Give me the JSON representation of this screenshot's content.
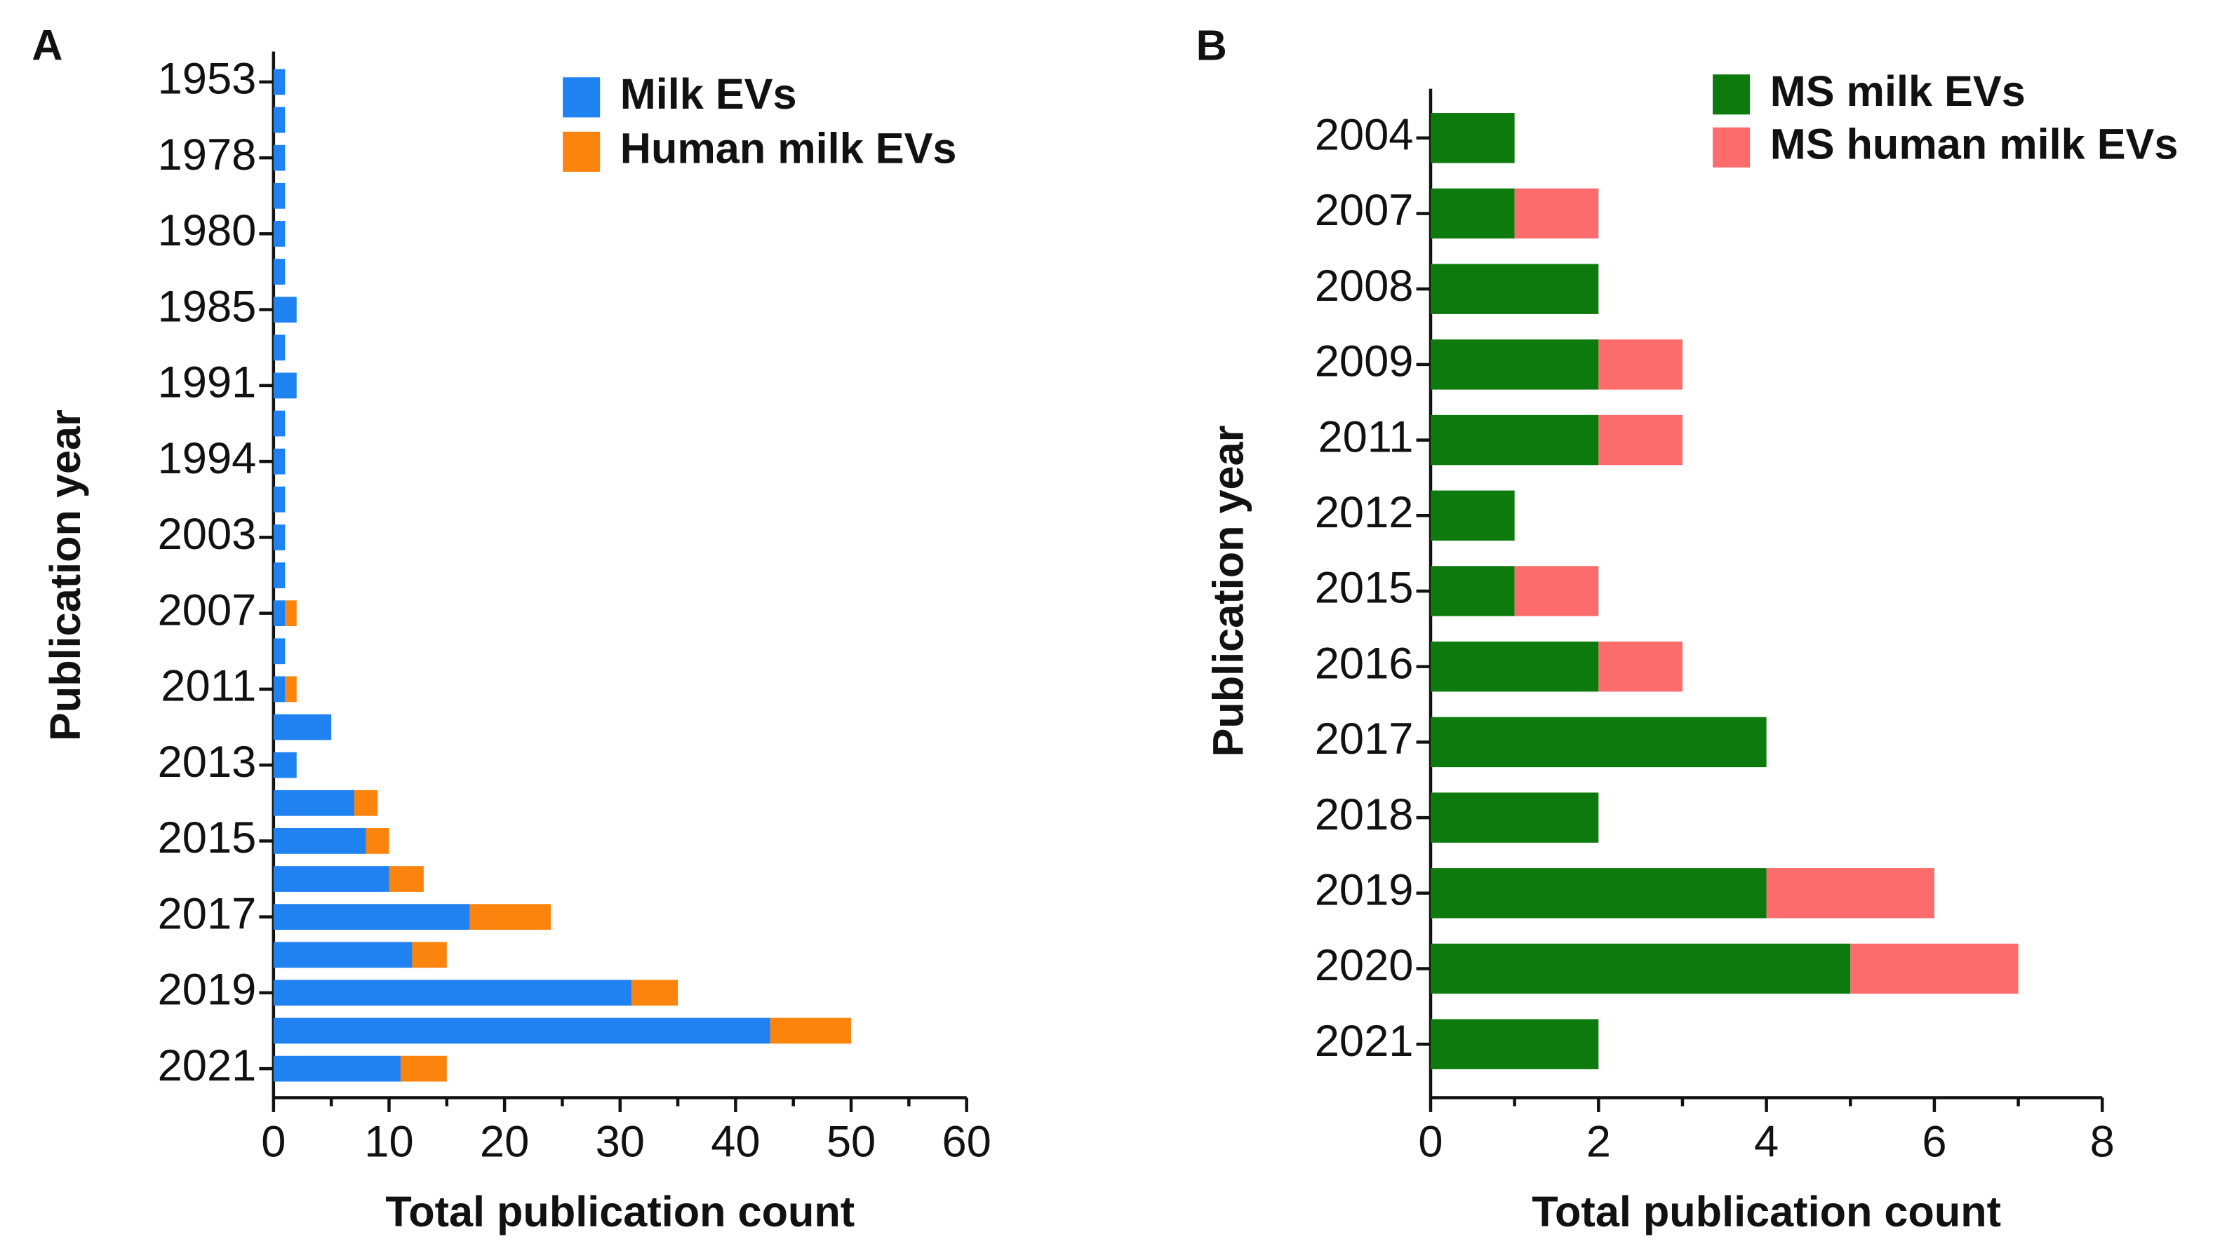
{
  "chart_data": [
    {
      "type": "bar",
      "orientation": "horizontal",
      "stacked": true,
      "panel_label": "A",
      "xlabel": "Total publication count",
      "ylabel": "Publication year",
      "categories": [
        "1953",
        null,
        "1978",
        null,
        "1980",
        null,
        "1985",
        null,
        "1991",
        null,
        "1994",
        null,
        "2003",
        null,
        "2007",
        null,
        "2011",
        null,
        "2013",
        null,
        "2015",
        null,
        "2017",
        null,
        "2019",
        null,
        "2021"
      ],
      "series": [
        {
          "name": "Milk EVs",
          "color": "#1f82f0",
          "values": [
            1,
            1,
            1,
            1,
            1,
            1,
            2,
            1,
            2,
            1,
            1,
            1,
            1,
            1,
            1,
            1,
            1,
            5,
            2,
            7,
            8,
            10,
            17,
            12,
            31,
            43,
            11
          ]
        },
        {
          "name": "Human milk EVs",
          "color": "#fb840f",
          "values": [
            0,
            0,
            0,
            0,
            0,
            0,
            0,
            0,
            0,
            0,
            0,
            0,
            0,
            0,
            1,
            0,
            1,
            0,
            0,
            2,
            2,
            3,
            7,
            3,
            4,
            7,
            4
          ]
        }
      ],
      "xlim": [
        0,
        60
      ],
      "xticks": [
        0,
        10,
        20,
        30,
        40,
        50,
        60
      ],
      "xminorticks": [
        5,
        15,
        25,
        35,
        45,
        55
      ],
      "legend": "top-right"
    },
    {
      "type": "bar",
      "orientation": "horizontal",
      "stacked": true,
      "panel_label": "B",
      "xlabel": "Total publication count",
      "ylabel": "Publication year",
      "categories": [
        "2004",
        "2007",
        "2008",
        "2009",
        "2011",
        "2012",
        "2015",
        "2016",
        "2017",
        "2018",
        "2019",
        "2020",
        "2021"
      ],
      "series": [
        {
          "name": "MS milk EVs",
          "color": "#0d7a0d",
          "values": [
            1,
            1,
            2,
            2,
            2,
            1,
            1,
            2,
            4,
            2,
            4,
            5,
            2
          ]
        },
        {
          "name": "MS human milk EVs",
          "color": "#fc6c6c",
          "values": [
            0,
            1,
            0,
            1,
            1,
            0,
            1,
            1,
            0,
            0,
            2,
            2,
            0
          ]
        }
      ],
      "xlim": [
        0,
        8
      ],
      "xticks": [
        0,
        2,
        4,
        6,
        8
      ],
      "xminorticks": [
        1,
        3,
        5,
        7
      ],
      "legend": "top-right"
    }
  ]
}
